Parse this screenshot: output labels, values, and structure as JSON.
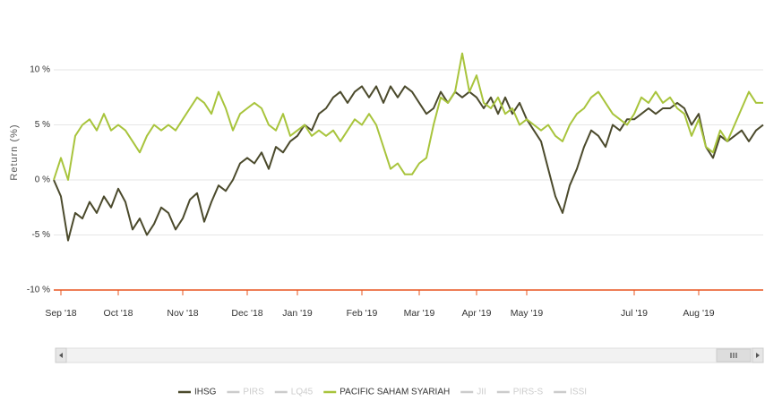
{
  "chart_data": {
    "type": "line",
    "y_axis_label": "Return (%)",
    "ylim": [
      -10,
      15
    ],
    "yticks": [
      {
        "value": -10,
        "label": "-10 %"
      },
      {
        "value": -5,
        "label": "-5 %"
      },
      {
        "value": 0,
        "label": "0 %"
      },
      {
        "value": 5,
        "label": "5 %"
      },
      {
        "value": 10,
        "label": "10 %"
      }
    ],
    "grid": true,
    "categories": [
      null,
      "Sep '18",
      null,
      null,
      null,
      null,
      null,
      null,
      null,
      "Oct '18",
      null,
      null,
      null,
      null,
      null,
      null,
      null,
      null,
      "Nov '18",
      null,
      null,
      null,
      null,
      null,
      null,
      null,
      null,
      "Dec '18",
      null,
      null,
      null,
      null,
      null,
      null,
      "Jan '19",
      null,
      null,
      null,
      null,
      null,
      null,
      null,
      null,
      "Feb '19",
      null,
      null,
      null,
      null,
      null,
      null,
      null,
      "Mar '19",
      null,
      null,
      null,
      null,
      null,
      null,
      null,
      "Apr '19",
      null,
      null,
      null,
      null,
      null,
      null,
      "May '19",
      null,
      null,
      null,
      null,
      null,
      null,
      null,
      null,
      null,
      null,
      null,
      null,
      null,
      null,
      "Jul '19",
      null,
      null,
      null,
      null,
      null,
      null,
      null,
      null,
      "Aug '19",
      null,
      null,
      null,
      null,
      null,
      null,
      null,
      null,
      null
    ],
    "series": [
      {
        "name": "IHSG",
        "color": "#4b4a2c",
        "visible": true,
        "values": [
          0,
          -1.5,
          -5.5,
          -3,
          -3.5,
          -2,
          -3,
          -1.5,
          -2.5,
          -0.8,
          -2,
          -4.5,
          -3.5,
          -5,
          -4,
          -2.5,
          -3,
          -4.5,
          -3.5,
          -1.8,
          -1.2,
          -3.8,
          -2,
          -0.5,
          -1,
          0,
          1.5,
          2,
          1.5,
          2.5,
          1,
          3,
          2.5,
          3.5,
          4,
          5,
          4.5,
          6,
          6.5,
          7.5,
          8,
          7,
          8,
          8.5,
          7.5,
          8.5,
          7,
          8.5,
          7.5,
          8.5,
          8,
          7,
          6,
          6.5,
          8,
          7,
          8,
          7.5,
          8,
          7.5,
          6.5,
          7.5,
          6,
          7.5,
          6,
          7,
          5.5,
          4.5,
          3.5,
          1,
          -1.5,
          -3,
          -0.5,
          1,
          3,
          4.5,
          4,
          3,
          5,
          4.5,
          5.5,
          5.5,
          6,
          6.5,
          6,
          6.5,
          6.5,
          7,
          6.5,
          5,
          6,
          3,
          2,
          4,
          3.5,
          4,
          4.5,
          3.5,
          4.5,
          5
        ]
      },
      {
        "name": "PIRS",
        "color": "#cccccc",
        "visible": false
      },
      {
        "name": "LQ45",
        "color": "#cccccc",
        "visible": false
      },
      {
        "name": "PACIFIC SAHAM SYARIAH",
        "color": "#a8c43c",
        "visible": true,
        "values": [
          0,
          2,
          0,
          4,
          5,
          5.5,
          4.5,
          6,
          4.5,
          5,
          4.5,
          3.5,
          2.5,
          4,
          5,
          4.5,
          5,
          4.5,
          5.5,
          6.5,
          7.5,
          7,
          6,
          8,
          6.5,
          4.5,
          6,
          6.5,
          7,
          6.5,
          5,
          4.5,
          6,
          4,
          4.5,
          5,
          4,
          4.5,
          4,
          4.5,
          3.5,
          4.5,
          5.5,
          5,
          6,
          5,
          3,
          1,
          1.5,
          0.5,
          0.5,
          1.5,
          2,
          5,
          7.5,
          7,
          8,
          11.5,
          8,
          9.5,
          7,
          6.5,
          7.5,
          6,
          6.5,
          5,
          5.5,
          5,
          4.5,
          5,
          4,
          3.5,
          5,
          6,
          6.5,
          7.5,
          8,
          7,
          6,
          5.5,
          5,
          6,
          7.5,
          7,
          8,
          7,
          7.5,
          6.5,
          6,
          4,
          5.5,
          3,
          2.5,
          4.5,
          3.5,
          5,
          6.5,
          8,
          7,
          7
        ]
      },
      {
        "name": "JII",
        "color": "#cccccc",
        "visible": false
      },
      {
        "name": "PIRS-S",
        "color": "#cccccc",
        "visible": false
      },
      {
        "name": "ISSI",
        "color": "#cccccc",
        "visible": false
      }
    ]
  }
}
